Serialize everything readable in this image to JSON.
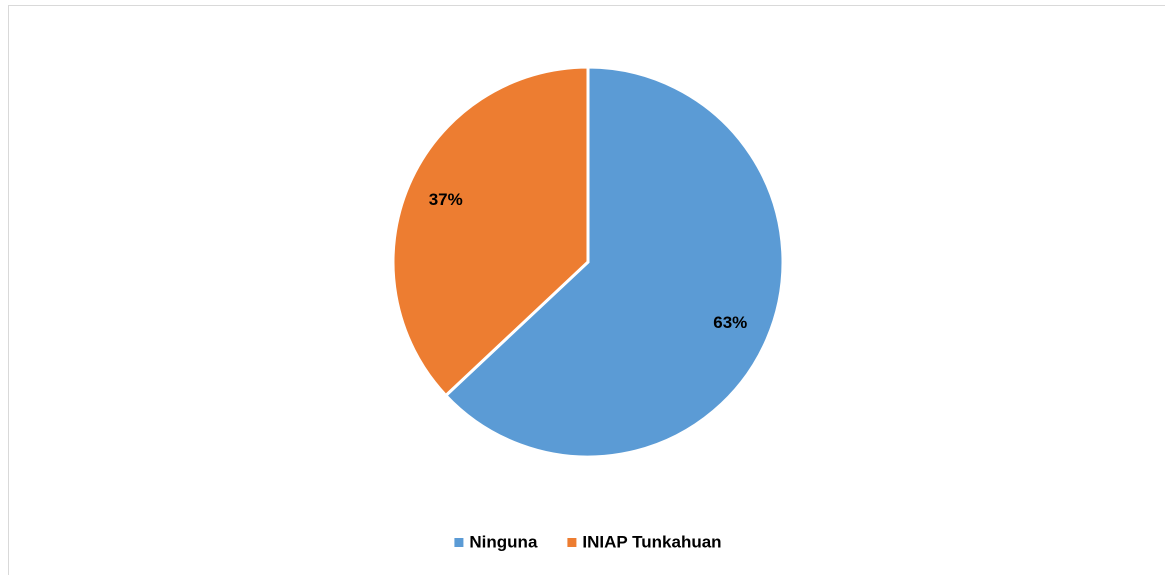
{
  "chart_data": {
    "type": "pie",
    "categories": [
      "Ninguna",
      "INIAP Tunkahuan"
    ],
    "values": [
      63,
      37
    ],
    "value_labels": [
      "63%",
      "37%"
    ],
    "colors": [
      "#5b9bd5",
      "#ed7d31"
    ],
    "legend": "bottom"
  }
}
